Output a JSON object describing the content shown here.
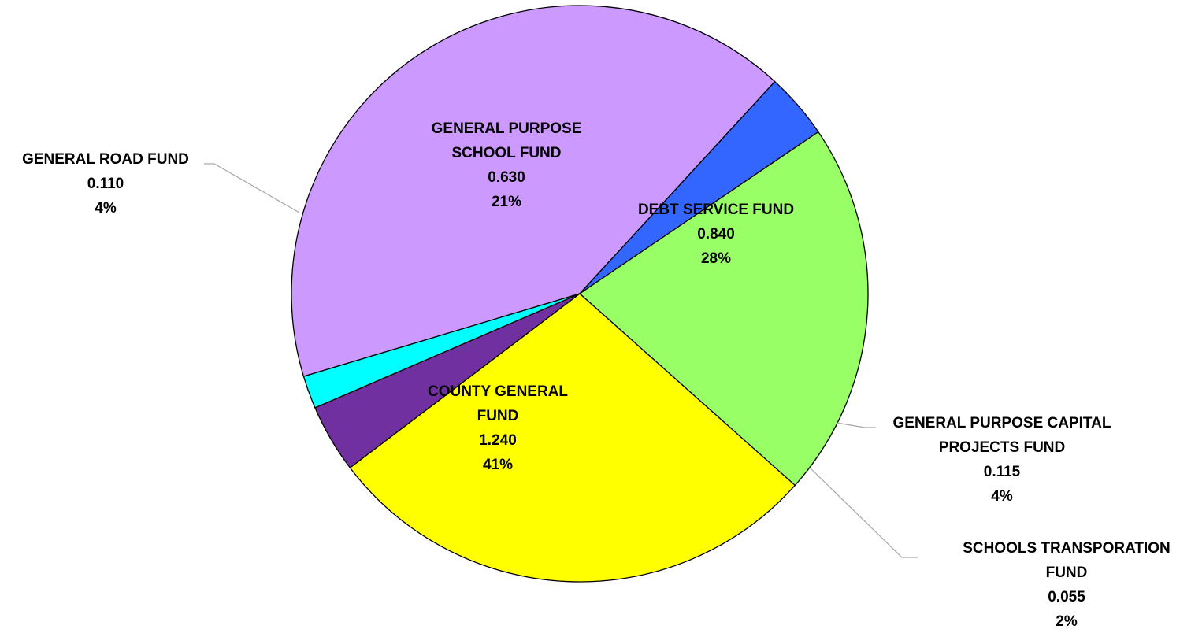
{
  "chart_data": {
    "type": "pie",
    "slices": [
      {
        "name": "COUNTY GENERAL FUND",
        "value": 1.24,
        "label_lines": [
          "COUNTY GENERAL",
          "FUND",
          "1.240",
          "41%"
        ],
        "color": "#CC99FF"
      },
      {
        "name": "GENERAL ROAD FUND",
        "value": 0.11,
        "label_lines": [
          "GENERAL ROAD FUND",
          "0.110",
          "4%"
        ],
        "color": "#3366FF"
      },
      {
        "name": "GENERAL PURPOSE SCHOOL FUND",
        "value": 0.63,
        "label_lines": [
          "GENERAL PURPOSE",
          "SCHOOL FUND",
          "0.630",
          "21%"
        ],
        "color": "#99FF66"
      },
      {
        "name": "DEBT SERVICE FUND",
        "value": 0.84,
        "label_lines": [
          "DEBT SERVICE FUND",
          "0.840",
          "28%"
        ],
        "color": "#FFFF00"
      },
      {
        "name": "GENERAL PURPOSE CAPITAL PROJECTS FUND",
        "value": 0.115,
        "label_lines": [
          "GENERAL PURPOSE CAPITAL",
          "PROJECTS FUND",
          "0.115",
          "4%"
        ],
        "color": "#7030A0"
      },
      {
        "name": "SCHOOLS TRANSPORATION FUND",
        "value": 0.055,
        "label_lines": [
          "SCHOOLS TRANSPORATION",
          "FUND",
          "0.055",
          "2%"
        ],
        "color": "#00FFFF"
      }
    ],
    "legend": "none"
  }
}
